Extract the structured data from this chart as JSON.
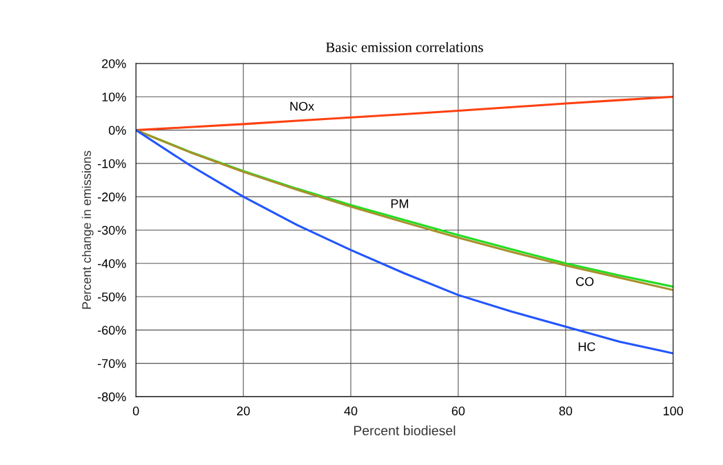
{
  "chart_data": {
    "type": "line",
    "title": "Basic emission correlations",
    "xlabel": "Percent biodiesel",
    "ylabel": "Percent change in emissions",
    "x": [
      0,
      10,
      20,
      30,
      40,
      50,
      60,
      70,
      80,
      90,
      100
    ],
    "series": [
      {
        "name": "NOx",
        "color": "#ff4010",
        "values": [
          0,
          0.9,
          1.8,
          2.8,
          3.8,
          4.8,
          5.8,
          6.9,
          8,
          9,
          10
        ]
      },
      {
        "name": "PM",
        "color": "#22dd22",
        "values": [
          0,
          -6.5,
          -12.3,
          -17.6,
          -22.5,
          -27,
          -31.5,
          -35.8,
          -40,
          -43.6,
          -47
        ]
      },
      {
        "name": "CO",
        "color": "#a8902a",
        "values": [
          0,
          -6.6,
          -12.5,
          -17.9,
          -23,
          -27.7,
          -32.3,
          -36.6,
          -40.6,
          -44.3,
          -48
        ]
      },
      {
        "name": "HC",
        "color": "#2255ff",
        "values": [
          0,
          -10.5,
          -20,
          -28.5,
          -36,
          -43,
          -49.5,
          -54.5,
          -59,
          -63.5,
          -67
        ]
      }
    ],
    "xlim": [
      0,
      100
    ],
    "xticks": [
      0,
      20,
      40,
      60,
      80,
      100
    ],
    "ylim": [
      -80,
      20
    ],
    "yticks": [
      {
        "value": -80,
        "label": "-80%"
      },
      {
        "value": -70,
        "label": "-70%"
      },
      {
        "value": -60,
        "label": "-60%"
      },
      {
        "value": -50,
        "label": "-50%"
      },
      {
        "value": -40,
        "label": "-40%"
      },
      {
        "value": -30,
        "label": "-30%"
      },
      {
        "value": -20,
        "label": "-20%"
      },
      {
        "value": -10,
        "label": "-10%"
      },
      {
        "value": 0,
        "label": "0%"
      },
      {
        "value": 10,
        "label": "10%"
      },
      {
        "value": 20,
        "label": "20%"
      }
    ],
    "grid": true,
    "legend": false,
    "marker": "none",
    "line_style": "solid"
  }
}
